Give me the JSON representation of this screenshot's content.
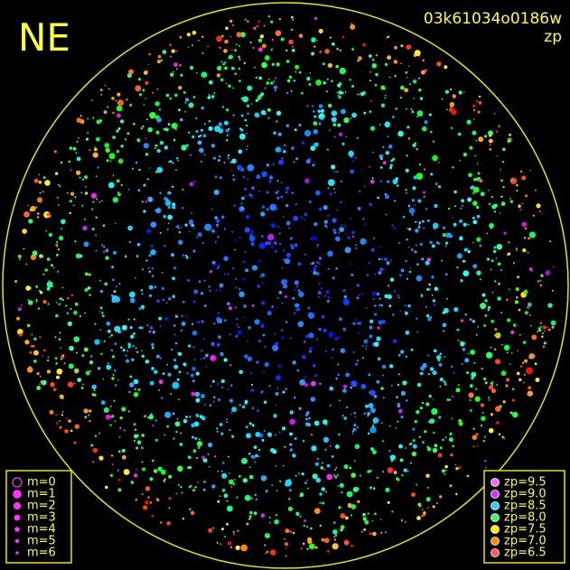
{
  "label": "NE",
  "frame_id": "03k61034o0186w",
  "mode": "zp",
  "magnitude_legend": [
    "m=0",
    "m=1",
    "m=2",
    "m=3",
    "m=4",
    "m=5",
    "m=6"
  ],
  "zp_legend": [
    "zp=9.5",
    "zp=9.0",
    "zp=8.5",
    "zp=8.0",
    "zp=7.5",
    "zp=7.0",
    "zp=6.5"
  ]
}
